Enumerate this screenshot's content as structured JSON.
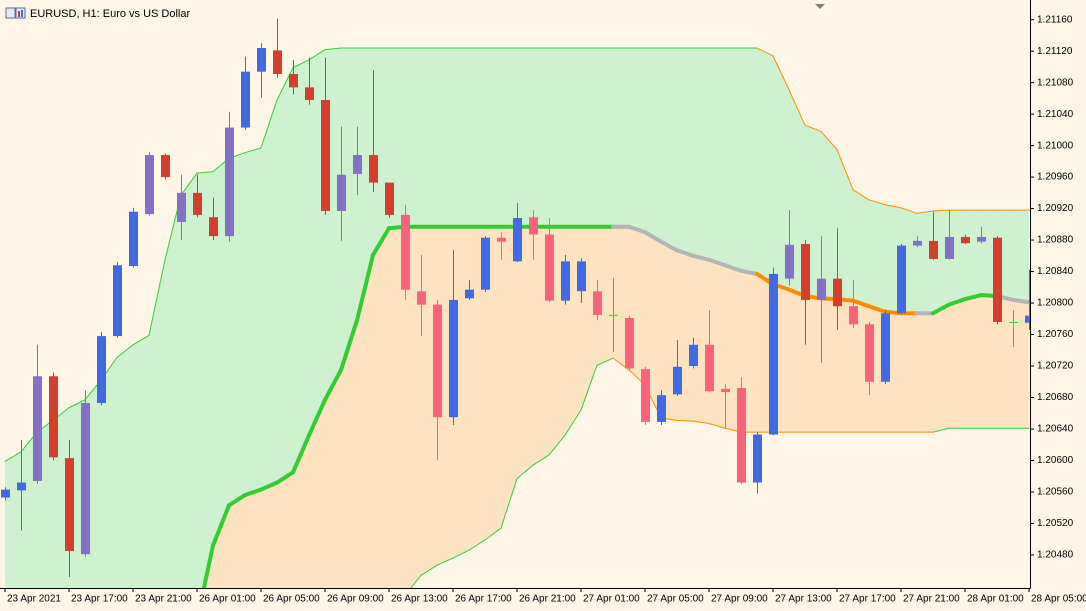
{
  "chart_data": {
    "type": "candlestick",
    "title": "EURUSD, H1:  Euro vs US Dollar",
    "categories": [
      "23 Apr 2021",
      null,
      null,
      null,
      "23 Apr 17:00",
      null,
      null,
      null,
      "23 Apr 21:00",
      null,
      null,
      null,
      "26 Apr 01:00",
      null,
      null,
      null,
      "26 Apr 05:00",
      null,
      null,
      null,
      "26 Apr 09:00",
      null,
      null,
      null,
      "26 Apr 13:00",
      null,
      null,
      null,
      "26 Apr 17:00",
      null,
      null,
      null,
      "26 Apr 21:00",
      null,
      null,
      null,
      "27 Apr 01:00",
      null,
      null,
      null,
      "27 Apr 05:00",
      null,
      null,
      null,
      "27 Apr 09:00",
      null,
      null,
      null,
      "27 Apr 13:00",
      null,
      null,
      null,
      "27 Apr 17:00",
      null,
      null,
      null,
      "27 Apr 21:00",
      null,
      null,
      null,
      "28 Apr 01:00",
      null,
      null,
      null,
      "28 Apr 05:00"
    ],
    "open": [
      1.20553,
      1.20562,
      1.20574,
      1.20707,
      1.20603,
      1.20481,
      1.20673,
      1.20758,
      1.20847,
      1.20913,
      1.20988,
      1.20903,
      1.2094,
      1.20909,
      1.20885,
      1.21023,
      1.21094,
      1.21121,
      1.21091,
      1.21074,
      1.21058,
      1.20917,
      1.20964,
      1.20988,
      1.20953,
      1.20912,
      1.20815,
      1.20798,
      1.20655,
      1.20806,
      1.20817,
      1.20883,
      1.20853,
      1.20909,
      1.20887,
      1.20803,
      1.20815,
      1.20815,
      1.20785,
      1.20781,
      1.20716,
      1.20649,
      1.20684,
      1.2072,
      1.20747,
      1.20691,
      1.20692,
      1.20572,
      1.20633,
      1.20831,
      1.20875,
      1.20804,
      1.20831,
      1.20796,
      1.20773,
      1.207,
      1.20787,
      1.20873,
      1.20879,
      1.20856,
      1.20884,
      1.20878,
      1.20883,
      1.20776,
      1.20775
    ],
    "high": [
      1.20566,
      1.20626,
      1.20747,
      1.20712,
      1.20626,
      1.20689,
      1.20763,
      1.20852,
      1.20921,
      1.20992,
      1.2099,
      1.20963,
      1.20963,
      1.20934,
      1.21043,
      1.21113,
      1.2113,
      1.21161,
      1.21109,
      1.21112,
      1.21112,
      1.21024,
      1.21024,
      1.21096,
      1.20953,
      1.20925,
      1.20861,
      1.20804,
      1.20867,
      1.20829,
      1.20885,
      1.2089,
      1.20927,
      1.20918,
      1.20908,
      1.20861,
      1.20857,
      1.20829,
      1.20832,
      1.20784,
      1.20719,
      1.20689,
      1.20753,
      1.20756,
      1.20791,
      1.20697,
      1.20706,
      1.20636,
      1.20845,
      1.20918,
      1.2088,
      1.20885,
      1.20895,
      1.20829,
      1.20776,
      1.20791,
      1.20875,
      1.20885,
      1.20916,
      1.20918,
      1.20887,
      1.20897,
      1.20885,
      1.20791,
      1.20842
    ],
    "low": [
      1.20549,
      1.20511,
      1.2057,
      1.206,
      1.20452,
      1.20478,
      1.2067,
      1.20756,
      1.20845,
      1.20911,
      1.20957,
      1.2088,
      1.20909,
      1.2088,
      1.20878,
      1.2102,
      1.21061,
      1.21086,
      1.21065,
      1.21052,
      1.20912,
      1.20879,
      1.20937,
      1.20941,
      1.20908,
      1.20804,
      1.20758,
      1.206,
      1.20645,
      1.20804,
      1.20814,
      1.20855,
      1.20852,
      1.20855,
      1.20801,
      1.20798,
      1.208,
      1.20778,
      1.20738,
      1.20715,
      1.20645,
      1.20645,
      1.20682,
      1.20717,
      1.20687,
      1.20641,
      1.2057,
      1.20558,
      1.20632,
      1.20822,
      1.20747,
      1.20724,
      1.20766,
      1.20768,
      1.20683,
      1.20697,
      1.20786,
      1.20871,
      1.20855,
      1.20855,
      1.20875,
      1.20876,
      1.20773,
      1.20744,
      1.20766
    ],
    "close": [
      1.20563,
      1.20572,
      1.20707,
      1.20604,
      1.20485,
      1.20673,
      1.20758,
      1.20848,
      1.20916,
      1.20988,
      1.2096,
      1.2094,
      1.20912,
      1.20885,
      1.21023,
      1.21094,
      1.21124,
      1.21091,
      1.21074,
      1.21058,
      1.20917,
      1.20963,
      1.20988,
      1.20953,
      1.20912,
      1.20817,
      1.20798,
      1.20655,
      1.20804,
      1.20817,
      1.20883,
      1.20878,
      1.20908,
      1.20887,
      1.20803,
      1.20853,
      1.20853,
      1.20785,
      1.20785,
      1.20717,
      1.20649,
      1.20683,
      1.20719,
      1.20747,
      1.20688,
      1.20687,
      1.20572,
      1.20633,
      1.20837,
      1.20874,
      1.20804,
      1.20831,
      1.20796,
      1.20773,
      1.207,
      1.20787,
      1.20873,
      1.20879,
      1.20856,
      1.20884,
      1.20876,
      1.20884,
      1.20776,
      1.20776,
      1.20784
    ],
    "candle_colors": [
      "#4169e1",
      "#4169e1",
      "#8470c6",
      "#d2402d",
      "#d2402d",
      "#8470c6",
      "#4169e1",
      "#4169e1",
      "#4169e1",
      "#8470c6",
      "#d2402d",
      "#8470c6",
      "#d2402d",
      "#d2402d",
      "#8470c6",
      "#4169e1",
      "#4169e1",
      "#d2402d",
      "#d2402d",
      "#d2402d",
      "#d2402d",
      "#8470c6",
      "#8470c6",
      "#d2402d",
      "#d2402d",
      "#f5647a",
      "#f5647a",
      "#f5647a",
      "#4169e1",
      "#4169e1",
      "#4169e1",
      "#f5647a",
      "#4169e1",
      "#f5647a",
      "#f5647a",
      "#4169e1",
      "#4169e1",
      "#f5647a",
      "#32cd32",
      "#f5647a",
      "#f5647a",
      "#4169e1",
      "#4169e1",
      "#4169e1",
      "#f5647a",
      "#f5647a",
      "#f5647a",
      "#4169e1",
      "#4169e1",
      "#8470c6",
      "#d2402d",
      "#8470c6",
      "#d2402d",
      "#f5647a",
      "#f5647a",
      "#4169e1",
      "#4169e1",
      "#8470c6",
      "#d2402d",
      "#8470c6",
      "#d2402d",
      "#8470c6",
      "#d2402d",
      "#32cd32",
      "#4169e1"
    ],
    "bands": {
      "upper": {
        "values": [
          1.20599,
          1.20611,
          1.20636,
          1.20651,
          1.20667,
          1.20677,
          1.20702,
          1.20731,
          1.20747,
          1.20759,
          1.20855,
          1.20937,
          1.20965,
          1.20967,
          1.20984,
          1.20991,
          1.20997,
          1.21058,
          1.21099,
          1.21109,
          1.21122,
          1.21124,
          1.21124,
          1.21124,
          1.21124,
          1.21124,
          1.21124,
          1.21124,
          1.21124,
          1.21124,
          1.21124,
          1.21124,
          1.21124,
          1.21124,
          1.21124,
          1.21124,
          1.21124,
          1.21124,
          1.21124,
          1.21124,
          1.21124,
          1.21124,
          1.21124,
          1.21124,
          1.21124,
          1.21124,
          1.21124,
          1.21124,
          1.21114,
          1.21071,
          1.21026,
          1.21018,
          1.20995,
          1.20944,
          1.20931,
          1.20925,
          1.20921,
          1.20914,
          1.20917,
          1.20918,
          1.20918,
          1.20918,
          1.20918,
          1.20918,
          1.20918
        ],
        "segment_colors": [
          "#32cd32",
          "#32cd32",
          "#32cd32",
          "#32cd32",
          "#32cd32",
          "#32cd32",
          "#32cd32",
          "#32cd32",
          "#32cd32",
          "#32cd32",
          "#32cd32",
          "#32cd32",
          "#32cd32",
          "#32cd32",
          "#32cd32",
          "#32cd32",
          "#32cd32",
          "#32cd32",
          "#32cd32",
          "#32cd32",
          "#32cd32",
          "#32cd32",
          "#32cd32",
          "#32cd32",
          "#32cd32",
          "#32cd32",
          "#32cd32",
          "#32cd32",
          "#32cd32",
          "#32cd32",
          "#32cd32",
          "#32cd32",
          "#32cd32",
          "#32cd32",
          "#32cd32",
          "#32cd32",
          "#32cd32",
          "#32cd32",
          "#32cd32",
          "#32cd32",
          "#32cd32",
          "#32cd32",
          "#32cd32",
          "#32cd32",
          "#32cd32",
          "#32cd32",
          "#32cd32",
          "#ff8c00",
          "#ff8c00",
          "#ff8c00",
          "#ff8c00",
          "#ff8c00",
          "#ff8c00",
          "#ff8c00",
          "#ff8c00",
          "#ff8c00",
          "#ff8c00",
          "#ff8c00",
          "#ff8c00",
          "#ff8c00",
          "#ff8c00",
          "#ff8c00",
          "#ff8c00",
          "#ff8c00"
        ]
      },
      "middle": {
        "values": [
          null,
          null,
          null,
          null,
          null,
          null,
          null,
          null,
          null,
          null,
          null,
          null,
          1.20397,
          1.20492,
          1.20543,
          1.20556,
          1.20563,
          1.20572,
          1.20585,
          1.20632,
          1.20677,
          1.20715,
          1.20778,
          1.20861,
          1.20895,
          1.20897,
          1.20897,
          1.20897,
          1.20897,
          1.20897,
          1.20897,
          1.20897,
          1.20897,
          1.20897,
          1.20897,
          1.20897,
          1.20897,
          1.20897,
          1.20897,
          1.20897,
          1.2089,
          1.20878,
          1.20867,
          1.2086,
          1.20855,
          1.20848,
          1.20841,
          1.20837,
          1.20824,
          1.20817,
          1.20809,
          1.20806,
          1.20805,
          1.20803,
          1.20796,
          1.20789,
          1.20787,
          1.20787,
          1.20787,
          1.20798,
          1.20805,
          1.2081,
          1.20809,
          1.20804,
          1.20801
        ],
        "segment_colors": [
          null,
          null,
          null,
          null,
          null,
          null,
          null,
          null,
          null,
          null,
          null,
          null,
          "#32cd32",
          "#32cd32",
          "#32cd32",
          "#32cd32",
          "#32cd32",
          "#32cd32",
          "#32cd32",
          "#32cd32",
          "#32cd32",
          "#32cd32",
          "#32cd32",
          "#32cd32",
          "#32cd32",
          "#32cd32",
          "#32cd32",
          "#32cd32",
          "#32cd32",
          "#32cd32",
          "#32cd32",
          "#32cd32",
          "#32cd32",
          "#32cd32",
          "#32cd32",
          "#32cd32",
          "#32cd32",
          "#32cd32",
          "#b4b4b4",
          "#b4b4b4",
          "#b4b4b4",
          "#b4b4b4",
          "#b4b4b4",
          "#b4b4b4",
          "#b4b4b4",
          "#b4b4b4",
          "#b4b4b4",
          "#ff8c00",
          "#ff8c00",
          "#ff8c00",
          "#ff8c00",
          "#ff8c00",
          "#ff8c00",
          "#ff8c00",
          "#ff8c00",
          "#ff8c00",
          "#ff8c00",
          "#b4b4b4",
          "#32cd32",
          "#32cd32",
          "#32cd32",
          "#32cd32",
          "#b4b4b4",
          "#b4b4b4"
        ]
      },
      "lower": {
        "values": [
          null,
          null,
          null,
          null,
          null,
          null,
          null,
          null,
          null,
          null,
          null,
          null,
          null,
          null,
          null,
          null,
          null,
          null,
          null,
          null,
          null,
          null,
          null,
          null,
          null,
          1.20429,
          1.20454,
          1.20467,
          1.20476,
          1.20486,
          1.20499,
          1.20514,
          1.20577,
          1.20594,
          1.20607,
          1.20632,
          1.20664,
          1.20721,
          1.2073,
          1.20715,
          1.20696,
          1.20654,
          1.20651,
          1.2065,
          1.20647,
          1.20641,
          1.20636,
          1.20636,
          1.20636,
          1.20636,
          1.20636,
          1.20636,
          1.20636,
          1.20636,
          1.20636,
          1.20636,
          1.20636,
          1.20636,
          1.20636,
          1.20641,
          1.20641,
          1.20641,
          1.20641,
          1.20641,
          1.20641
        ],
        "segment_colors": [
          null,
          null,
          null,
          null,
          null,
          null,
          null,
          null,
          null,
          null,
          null,
          null,
          null,
          null,
          null,
          null,
          null,
          null,
          null,
          null,
          null,
          null,
          null,
          null,
          null,
          "#32cd32",
          "#32cd32",
          "#32cd32",
          "#32cd32",
          "#32cd32",
          "#32cd32",
          "#32cd32",
          "#32cd32",
          "#32cd32",
          "#32cd32",
          "#32cd32",
          "#32cd32",
          "#32cd32",
          "#ff8c00",
          "#ff8c00",
          "#ff8c00",
          "#ff8c00",
          "#ff8c00",
          "#ff8c00",
          "#ff8c00",
          "#ff8c00",
          "#ff8c00",
          "#ff8c00",
          "#ff8c00",
          "#ff8c00",
          "#ff8c00",
          "#ff8c00",
          "#ff8c00",
          "#ff8c00",
          "#ff8c00",
          "#ff8c00",
          "#ff8c00",
          "#ff8c00",
          "#32cd32",
          "#32cd32",
          "#32cd32",
          "#32cd32",
          "#32cd32",
          "#32cd32"
        ]
      }
    },
    "fills": {
      "upper": "#cef2d0",
      "lower": "#fde3bf"
    },
    "ylim": [
      1.20438,
      1.21185
    ],
    "yticks": [
      {
        "value": 1.2116,
        "label": "1.21160"
      },
      {
        "value": 1.2112,
        "label": "1.21120"
      },
      {
        "value": 1.2108,
        "label": "1.21080"
      },
      {
        "value": 1.2104,
        "label": "1.21040"
      },
      {
        "value": 1.21,
        "label": "1.21000"
      },
      {
        "value": 1.2096,
        "label": "1.20960"
      },
      {
        "value": 1.2092,
        "label": "1.20920"
      },
      {
        "value": 1.2088,
        "label": "1.20880"
      },
      {
        "value": 1.2084,
        "label": "1.20840"
      },
      {
        "value": 1.208,
        "label": "1.20800"
      },
      {
        "value": 1.2076,
        "label": "1.20760"
      },
      {
        "value": 1.2072,
        "label": "1.20720"
      },
      {
        "value": 1.2068,
        "label": "1.20680"
      },
      {
        "value": 1.2064,
        "label": "1.20640"
      },
      {
        "value": 1.206,
        "label": "1.20600"
      },
      {
        "value": 1.2056,
        "label": "1.20560"
      },
      {
        "value": 1.2052,
        "label": "1.20520"
      },
      {
        "value": 1.2048,
        "label": "1.20480"
      }
    ],
    "grid": false
  }
}
